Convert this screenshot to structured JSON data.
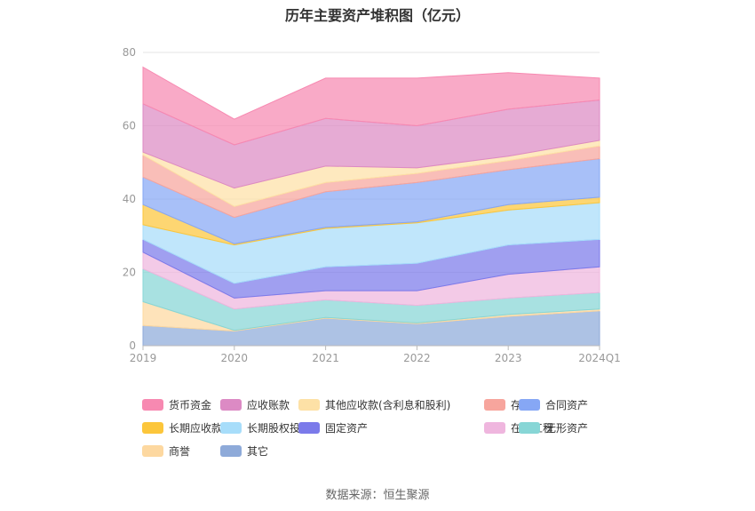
{
  "chart_data": {
    "type": "area",
    "stacked": true,
    "title": "历年主要资产堆积图（亿元）",
    "categories": [
      "2019",
      "2020",
      "2021",
      "2022",
      "2023",
      "2024Q1"
    ],
    "ylim": [
      0,
      80
    ],
    "yticks": [
      0,
      20,
      40,
      60,
      80
    ],
    "grid": true,
    "legend_position": "bottom",
    "series": [
      {
        "name": "其它",
        "color": "#8eaad9",
        "values": [
          5.5,
          4.0,
          7.5,
          6.0,
          8.0,
          9.5
        ]
      },
      {
        "name": "商誉",
        "color": "#fdd8a0",
        "values": [
          6.5,
          0.2,
          0.2,
          0.2,
          0.5,
          0.5
        ]
      },
      {
        "name": "无形资产",
        "color": "#87d6d6",
        "values": [
          9.0,
          5.8,
          4.8,
          4.8,
          4.5,
          4.5
        ]
      },
      {
        "name": "在建工程",
        "color": "#efb6de",
        "values": [
          4.5,
          3.0,
          2.5,
          4.0,
          6.5,
          7.0
        ]
      },
      {
        "name": "固定资产",
        "color": "#7b7aea",
        "values": [
          3.5,
          4.0,
          6.5,
          7.5,
          8.0,
          7.5
        ]
      },
      {
        "name": "长期股权投资",
        "color": "#a7ddfa",
        "values": [
          4.0,
          10.5,
          10.5,
          11.0,
          9.5,
          10.0
        ]
      },
      {
        "name": "长期应收款",
        "color": "#fcc63b",
        "values": [
          5.5,
          0.3,
          0.3,
          0.3,
          1.5,
          1.5
        ]
      },
      {
        "name": "合同资产",
        "color": "#86a7f5",
        "values": [
          7.5,
          7.2,
          9.7,
          10.7,
          9.5,
          10.5
        ]
      },
      {
        "name": "存货",
        "color": "#f7a59d",
        "values": [
          6.0,
          3.0,
          2.5,
          2.5,
          2.5,
          3.5
        ]
      },
      {
        "name": "其他应收款(含利息和股利)",
        "color": "#fde1a6",
        "values": [
          0.8,
          5.0,
          4.5,
          1.5,
          1.2,
          1.5
        ]
      },
      {
        "name": "应收账款",
        "color": "#dc8ac4",
        "values": [
          13.2,
          11.8,
          13.0,
          11.5,
          12.8,
          11.0
        ]
      },
      {
        "name": "货币资金",
        "color": "#f789b1",
        "values": [
          10.0,
          7.0,
          11.0,
          13.0,
          10.0,
          6.0
        ]
      }
    ],
    "legend_order": [
      "货币资金",
      "应收账款",
      "其他应收款(含利息和股利)",
      "存货",
      "合同资产",
      "长期应收款",
      "长期股权投资",
      "固定资产",
      "在建工程",
      "无形资产",
      "商誉",
      "其它"
    ]
  },
  "footer": {
    "source": "数据来源：恒生聚源"
  }
}
